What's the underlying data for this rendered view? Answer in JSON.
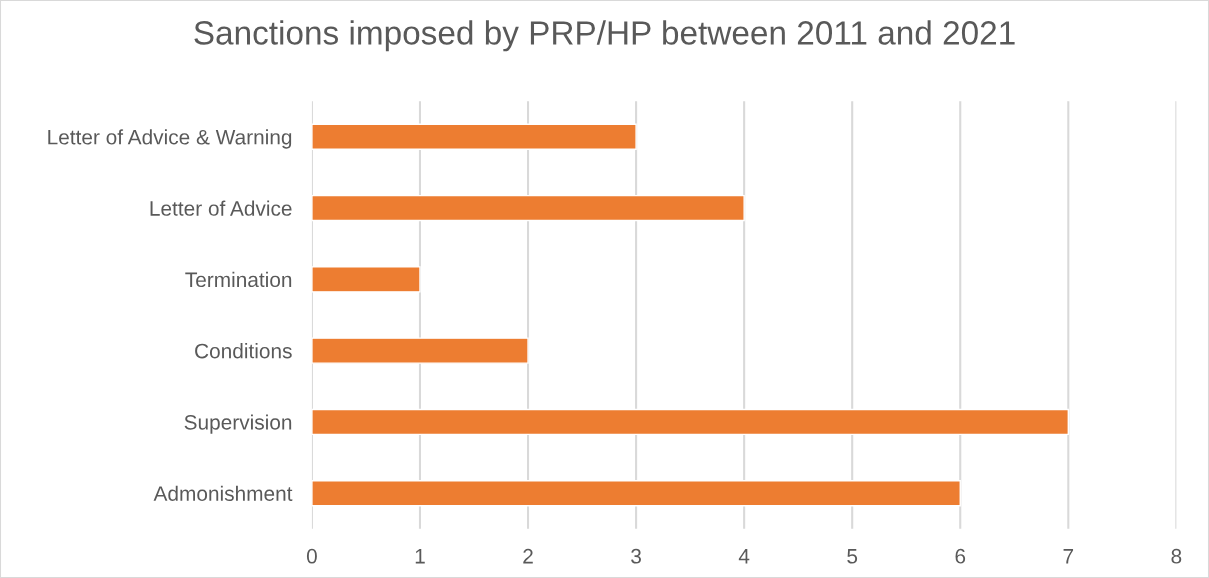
{
  "chart_data": {
    "type": "bar",
    "orientation": "horizontal",
    "title": "Sanctions imposed by PRP/HP between 2011 and 2021",
    "categories": [
      "Letter of Advice & Warning",
      "Letter of Advice",
      "Termination",
      "Conditions",
      "Supervision",
      "Admonishment"
    ],
    "values": [
      3,
      4,
      1,
      2,
      7,
      6
    ],
    "color": "#ed7d31",
    "xlim": [
      0,
      8
    ],
    "xticks": [
      0,
      1,
      2,
      3,
      4,
      5,
      6,
      7,
      8
    ],
    "grid": "x",
    "legend": false
  }
}
